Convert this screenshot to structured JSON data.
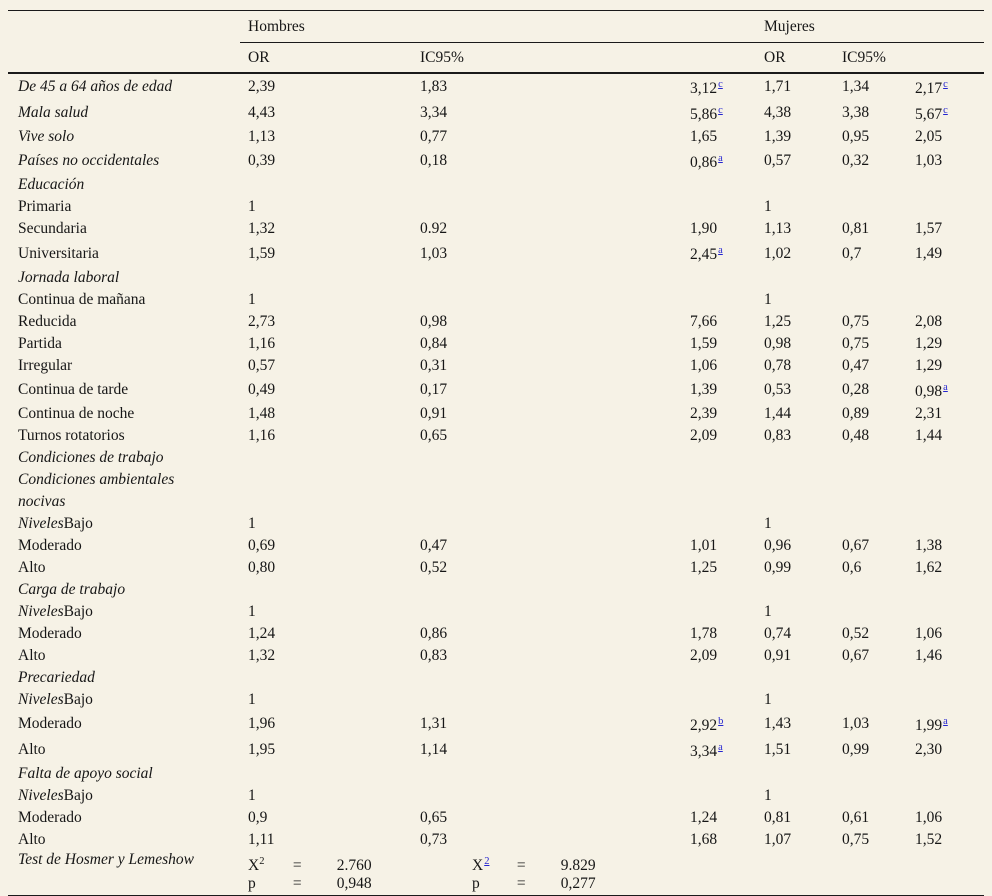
{
  "page": {
    "background_color": "#f6f2e6",
    "rule_color": "#1a1a1a",
    "footnote_link_color": "#2424d0"
  },
  "table": {
    "group_headers": {
      "hombres": "Hombres",
      "mujeres": "Mujeres"
    },
    "column_headers": {
      "or": "OR",
      "ci": "IC95%"
    },
    "rows": [
      {
        "label_italic": "De 45 a 64 años de edad",
        "cells": [
          "2,39",
          "1,83",
          {
            "v": "3,12",
            "sup": "c"
          },
          "1,71",
          "1,34",
          {
            "v": "2,17",
            "sup": "c"
          }
        ]
      },
      {
        "label_italic": "Mala salud",
        "cells": [
          "4,43",
          "3,34",
          {
            "v": "5,86",
            "sup": "c"
          },
          "4,38",
          "3,38",
          {
            "v": "5,67",
            "sup": "c"
          }
        ]
      },
      {
        "label_italic": "Vive solo",
        "cells": [
          "1,13",
          "0,77",
          "1,65",
          "1,39",
          "0,95",
          "2,05"
        ]
      },
      {
        "label_italic": "Países no occidentales",
        "cells": [
          "0,39",
          "0,18",
          {
            "v": "0,86",
            "sup": "a"
          },
          "0,57",
          "0,32",
          "1,03"
        ]
      },
      {
        "label_italic": "Educación",
        "cells": [
          "",
          "",
          "",
          "",
          "",
          ""
        ]
      },
      {
        "label_roman": "Primaria",
        "cells": [
          "1",
          "",
          "",
          "1",
          "",
          ""
        ]
      },
      {
        "label_roman": "Secundaria",
        "cells": [
          "1,32",
          "0.92",
          "1,90",
          "1,13",
          "0,81",
          "1,57"
        ]
      },
      {
        "label_roman": "Universitaria",
        "cells": [
          "1,59",
          "1,03",
          {
            "v": "2,45",
            "sup": "a"
          },
          "1,02",
          "0,7",
          "1,49"
        ]
      },
      {
        "label_italic": "Jornada laboral",
        "cells": [
          "",
          "",
          "",
          "",
          "",
          ""
        ]
      },
      {
        "label_roman": "Continua de mañana",
        "cells": [
          "1",
          "",
          "",
          "1",
          "",
          ""
        ]
      },
      {
        "label_roman": "Reducida",
        "cells": [
          "2,73",
          "0,98",
          "7,66",
          "1,25",
          "0,75",
          "2,08"
        ]
      },
      {
        "label_roman": "Partida",
        "cells": [
          "1,16",
          "0,84",
          "1,59",
          "0,98",
          "0,75",
          "1,29"
        ]
      },
      {
        "label_roman": "Irregular",
        "cells": [
          "0,57",
          "0,31",
          "1,06",
          "0,78",
          "0,47",
          "1,29"
        ]
      },
      {
        "label_roman": "Continua de tarde",
        "cells": [
          "0,49",
          "0,17",
          "1,39",
          "0,53",
          "0,28",
          {
            "v": "0,98",
            "sup": "a"
          }
        ]
      },
      {
        "label_roman": "Continua de noche",
        "cells": [
          "1,48",
          "0,91",
          "2,39",
          "1,44",
          "0,89",
          "2,31"
        ]
      },
      {
        "label_roman": "Turnos rotatorios",
        "cells": [
          "1,16",
          "0,65",
          "2,09",
          "0,83",
          "0,48",
          "1,44"
        ]
      },
      {
        "label_italic": "Condiciones de trabajo",
        "cells": [
          "",
          "",
          "",
          "",
          "",
          ""
        ]
      },
      {
        "label_italic": "Condiciones ambientales",
        "cells": [
          "",
          "",
          "",
          "",
          "",
          ""
        ]
      },
      {
        "label_italic": "nocivas",
        "cells": [
          "",
          "",
          "",
          "",
          "",
          ""
        ]
      },
      {
        "label_italic": "Niveles",
        "label_roman": "Bajo",
        "cells": [
          "1",
          "",
          "",
          "1",
          "",
          ""
        ]
      },
      {
        "label_roman": "Moderado",
        "cells": [
          "0,69",
          "0,47",
          "1,01",
          "0,96",
          "0,67",
          "1,38"
        ]
      },
      {
        "label_roman": "Alto",
        "cells": [
          "0,80",
          "0,52",
          "1,25",
          "0,99",
          "0,6",
          "1,62"
        ]
      },
      {
        "label_italic": "Carga de trabajo",
        "cells": [
          "",
          "",
          "",
          "",
          "",
          ""
        ]
      },
      {
        "label_italic": "Niveles",
        "label_roman": "Bajo",
        "cells": [
          "1",
          "",
          "",
          "1",
          "",
          ""
        ]
      },
      {
        "label_roman": "Moderado",
        "cells": [
          "1,24",
          "0,86",
          "1,78",
          "0,74",
          "0,52",
          "1,06"
        ]
      },
      {
        "label_roman": "Alto",
        "cells": [
          "1,32",
          "0,83",
          "2,09",
          "0,91",
          "0,67",
          "1,46"
        ]
      },
      {
        "label_italic": "Precariedad",
        "cells": [
          "",
          "",
          "",
          "",
          "",
          ""
        ]
      },
      {
        "label_italic": "Niveles",
        "label_roman": "Bajo",
        "cells": [
          "1",
          "",
          "",
          "1",
          "",
          ""
        ]
      },
      {
        "label_roman": "Moderado",
        "cells": [
          "1,96",
          "1,31",
          {
            "v": "2,92",
            "sup": "b"
          },
          "1,43",
          "1,03",
          {
            "v": "1,99",
            "sup": "a"
          }
        ]
      },
      {
        "label_roman": "Alto",
        "cells": [
          "1,95",
          "1,14",
          {
            "v": "3,34",
            "sup": "a"
          },
          "1,51",
          "0,99",
          "2,30"
        ]
      },
      {
        "label_italic": "Falta de apoyo social",
        "cells": [
          "",
          "",
          "",
          "",
          "",
          ""
        ]
      },
      {
        "label_italic": "Niveles",
        "label_roman": "Bajo",
        "cells": [
          "1",
          "",
          "",
          "1",
          "",
          ""
        ]
      },
      {
        "label_roman": "Moderado",
        "cells": [
          "0,9",
          "0,65",
          "1,24",
          "0,81",
          "0,61",
          "1,06"
        ]
      },
      {
        "label_roman": "Alto",
        "cells": [
          "1,11",
          "0,73",
          "1,68",
          "1,07",
          "0,75",
          "1,52"
        ]
      }
    ],
    "test_row": {
      "label": "Test de Hosmer y Lemeshow",
      "blocks": [
        {
          "chi_sym": "X",
          "chi_sup": "2",
          "chi_sup_is_link": false,
          "eq": "=",
          "chi_value": "2.760",
          "p_sym": "p",
          "p_value": "0,948"
        },
        {
          "chi_sym": "X",
          "chi_sup": "2",
          "chi_sup_is_link": true,
          "eq": "=",
          "chi_value": "9.829",
          "p_sym": "p",
          "p_value": "0,277"
        }
      ]
    }
  }
}
